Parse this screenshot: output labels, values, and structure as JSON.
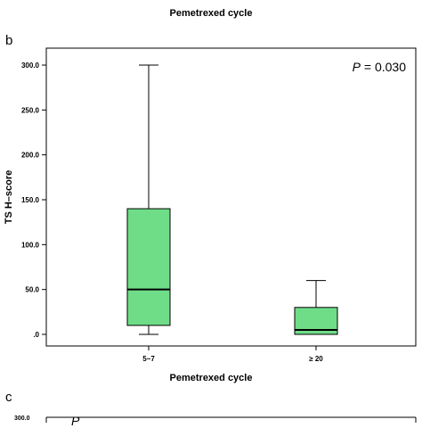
{
  "top_fragment": {
    "xlabel": "Pemetrexed cycle",
    "cut_tick_left": "5~7",
    "cut_tick_right": "≥ 20"
  },
  "panel_b": {
    "letter": "b"
  },
  "panel_c": {
    "letter": "c",
    "partial_ytick": "300.0",
    "partial_annotation": "P"
  },
  "colors": {
    "box_fill": "#6fdd88",
    "box_stroke": "#000000",
    "frame": "#000000"
  },
  "chart_data": {
    "type": "box",
    "title": "",
    "xlabel": "Pemetrexed cycle",
    "ylabel": "TS H–score",
    "categories": [
      "5~7",
      "≥ 20"
    ],
    "ylim": [
      0,
      300
    ],
    "yticks": [
      0,
      50,
      100,
      150,
      200,
      250,
      300
    ],
    "ytick_labels": [
      ".0",
      "50.0",
      "100.0",
      "150.0",
      "200.0",
      "250.0",
      "300.0"
    ],
    "boxes": [
      {
        "category": "5~7",
        "min": 0,
        "q1": 10,
        "median": 50,
        "q3": 140,
        "max": 300
      },
      {
        "category": "≥ 20",
        "min": 0,
        "q1": 0,
        "median": 5,
        "q3": 30,
        "max": 60
      }
    ],
    "annotation": {
      "label": "P",
      "text": " = 0.030",
      "placement": "top-right"
    },
    "grid": false
  }
}
